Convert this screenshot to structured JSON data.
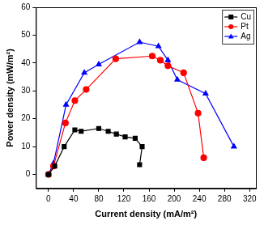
{
  "chart_data": {
    "type": "line",
    "x_label": "Current density (mA/m²)",
    "y_label": "Power density (mW/m²)",
    "xlim": [
      -20,
      330
    ],
    "xticks": [
      0,
      40,
      80,
      120,
      160,
      200,
      240,
      280,
      320
    ],
    "ylim": [
      -5,
      60
    ],
    "yticks": [
      0,
      10,
      20,
      30,
      40,
      50,
      60
    ],
    "grid": false,
    "legend": "upper right",
    "series": [
      {
        "name": "Cu",
        "color": "#000000",
        "marker": "square",
        "x": [
          0,
          10,
          25,
          42,
          52,
          80,
          95,
          108,
          122,
          138,
          149,
          145
        ],
        "values": [
          0,
          3,
          10,
          16,
          15.5,
          16.5,
          15.5,
          14.5,
          13.5,
          13,
          10,
          3.5
        ]
      },
      {
        "name": "Pt",
        "color": "#ff0000",
        "marker": "circle",
        "x": [
          0,
          8,
          27,
          42,
          60,
          107,
          165,
          178,
          190,
          215,
          238,
          247
        ],
        "values": [
          0,
          3,
          18.5,
          26.5,
          30.5,
          41.5,
          42.5,
          41,
          39,
          36.5,
          22,
          6
        ]
      },
      {
        "name": "Ag",
        "color": "#0000ff",
        "marker": "triangle",
        "x": [
          0,
          8,
          28,
          57,
          80,
          145,
          175,
          190,
          205,
          250,
          295
        ],
        "values": [
          0,
          4,
          25,
          36.5,
          39.5,
          47.5,
          46,
          41,
          34,
          29,
          10
        ]
      }
    ]
  }
}
